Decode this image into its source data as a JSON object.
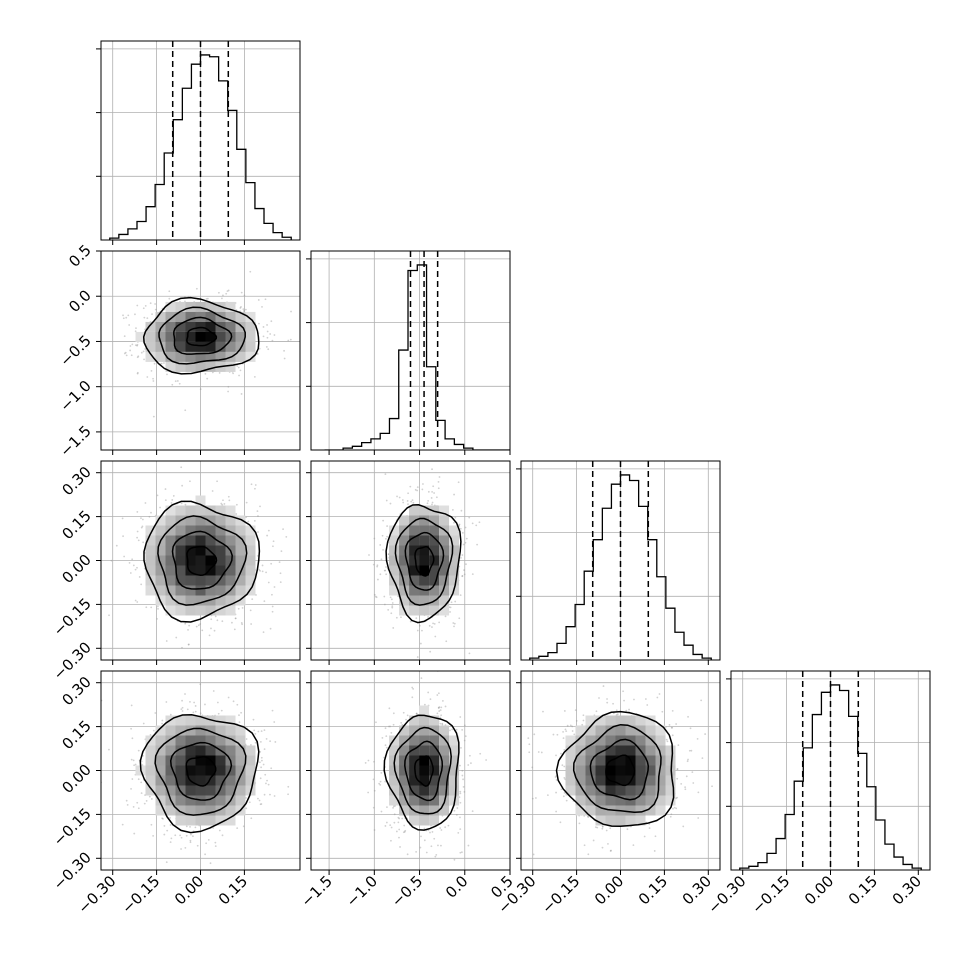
{
  "chart_data": {
    "type": "corner",
    "title": "",
    "grid": true,
    "n_dims": 4,
    "dims": [
      {
        "name": "",
        "range": [
          -0.34,
          0.34
        ],
        "ticks": [
          -0.3,
          -0.15,
          0.0,
          0.15
        ],
        "tick_labels": [
          "−0.30",
          "−0.15",
          "0.00",
          "0.15"
        ],
        "center": 0.0,
        "sigma": 0.098,
        "quantiles": [
          -0.095,
          0.0,
          0.095
        ]
      },
      {
        "name": "",
        "range": [
          -1.7,
          0.5
        ],
        "ticks": [
          -1.5,
          -1.0,
          -0.5,
          0.0,
          0.5
        ],
        "tick_labels": [
          "−1.5",
          "−1.0",
          "−0.5",
          "0.0",
          "0.5"
        ],
        "center": -0.45,
        "sigma": 0.2,
        "quantiles": [
          -0.6,
          -0.45,
          -0.3
        ]
      },
      {
        "name": "",
        "range": [
          -0.34,
          0.34
        ],
        "ticks": [
          -0.3,
          -0.15,
          0.0,
          0.15,
          0.3
        ],
        "tick_labels": [
          "−0.30",
          "−0.15",
          "0.00",
          "0.15",
          "0.30"
        ],
        "center": 0.0,
        "sigma": 0.098,
        "quantiles": [
          -0.095,
          0.0,
          0.095
        ]
      },
      {
        "name": "",
        "range": [
          -0.34,
          0.34
        ],
        "ticks": [
          -0.3,
          -0.15,
          0.0,
          0.15,
          0.3
        ],
        "tick_labels": [
          "−0.30",
          "−0.15",
          "0.00",
          "0.15",
          "0.30"
        ],
        "center": 0.0,
        "sigma": 0.098,
        "quantiles": [
          -0.095,
          0.0,
          0.095
        ]
      }
    ],
    "histograms": [
      {
        "dim": 0,
        "bins": 20,
        "counts": [
          0.01,
          0.03,
          0.06,
          0.1,
          0.18,
          0.3,
          0.47,
          0.65,
          0.82,
          0.95,
          1.0,
          0.99,
          0.86,
          0.7,
          0.49,
          0.31,
          0.17,
          0.09,
          0.04,
          0.015
        ]
      },
      {
        "dim": 1,
        "bins": 20,
        "counts": [
          0.0,
          0.0,
          0.01,
          0.02,
          0.04,
          0.06,
          0.09,
          0.17,
          0.54,
          0.97,
          1.0,
          0.45,
          0.16,
          0.06,
          0.03,
          0.01,
          0.0,
          0.0,
          0.0,
          0.0
        ]
      },
      {
        "dim": 2,
        "bins": 20,
        "counts": [
          0.01,
          0.02,
          0.04,
          0.09,
          0.18,
          0.3,
          0.48,
          0.65,
          0.82,
          0.95,
          1.0,
          0.97,
          0.83,
          0.65,
          0.45,
          0.28,
          0.15,
          0.08,
          0.03,
          0.01
        ]
      },
      {
        "dim": 3,
        "bins": 20,
        "counts": [
          0.01,
          0.02,
          0.04,
          0.09,
          0.17,
          0.3,
          0.48,
          0.66,
          0.84,
          0.96,
          1.0,
          0.97,
          0.83,
          0.63,
          0.45,
          0.27,
          0.14,
          0.07,
          0.03,
          0.01
        ]
      }
    ],
    "contour_levels": [
      0.5,
      1.0,
      1.5,
      2.0
    ],
    "scatter_points_per_panel": 900,
    "colors": {
      "line": "#000000",
      "grid": "#b0b0b0",
      "scatter": "#9a9a9a",
      "density_max": "#000000",
      "density_min": "#ffffff"
    }
  }
}
